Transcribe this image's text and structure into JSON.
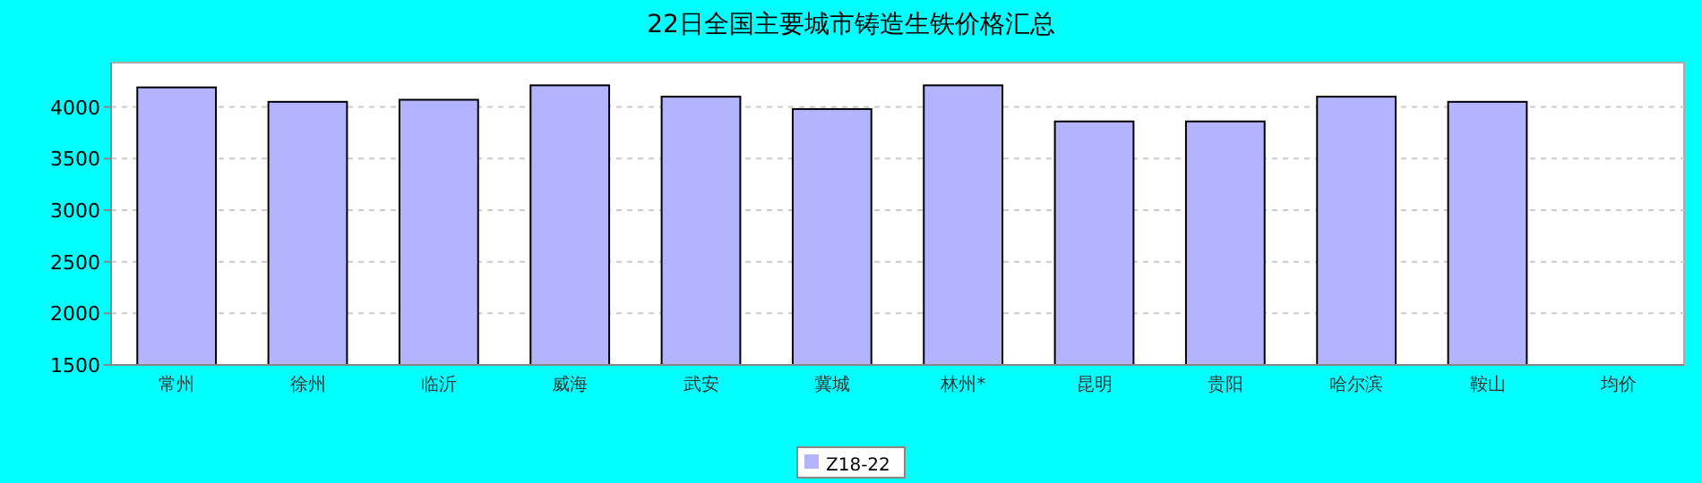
{
  "chart_data": {
    "type": "bar",
    "title": "22日全国主要城市铸造生铁价格汇总",
    "categories": [
      "常州",
      "徐州",
      "临沂",
      "威海",
      "武安",
      "冀城",
      "林州*",
      "昆明",
      "贵阳",
      "哈尔滨",
      "鞍山",
      "均价"
    ],
    "series": [
      {
        "name": "Z18-22",
        "color": "#b3b3ff",
        "values": [
          4190,
          4050,
          4070,
          4210,
          4100,
          3980,
          4210,
          3860,
          3860,
          4100,
          4050,
          null
        ]
      }
    ],
    "ylim": [
      1500,
      4430
    ],
    "yticks": [
      1500,
      2000,
      2500,
      3000,
      3500,
      4000
    ],
    "grid": "y",
    "legend": "bottom"
  }
}
